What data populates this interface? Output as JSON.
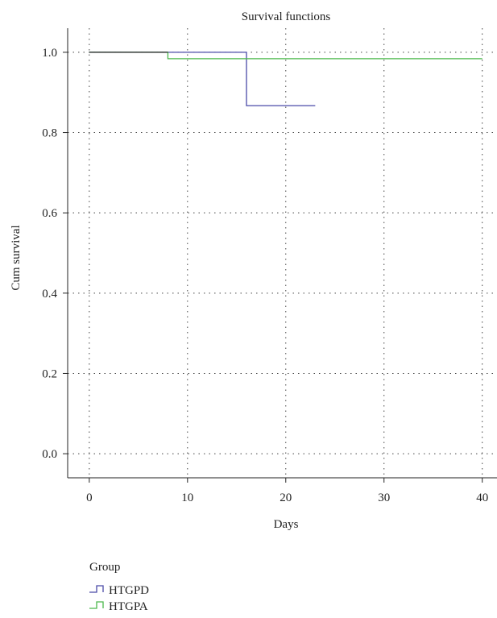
{
  "chart_data": {
    "type": "line",
    "step": true,
    "title": "Survival functions",
    "xlabel": "Days",
    "ylabel": "Cum survival",
    "xlim": [
      -2.2,
      41.5
    ],
    "ylim": [
      -0.06,
      1.06
    ],
    "x_ticks": [
      0,
      10,
      20,
      30,
      40
    ],
    "x_tick_labels": [
      "0",
      "10",
      "20",
      "30",
      "40"
    ],
    "y_ticks": [
      0.0,
      0.2,
      0.4,
      0.6,
      0.8,
      1.0
    ],
    "y_tick_labels": [
      "0.0",
      "0.2",
      "0.4",
      "0.6",
      "0.8",
      "1.0"
    ],
    "grid": "dotted",
    "legend_title": "Group",
    "legend_position": "bottom-left",
    "series": [
      {
        "name": "HTGPD",
        "color": "#4a4aa8",
        "x": [
          0,
          16,
          16,
          23
        ],
        "y": [
          1.0,
          1.0,
          0.867,
          0.867
        ]
      },
      {
        "name": "HTGPA",
        "color": "#4cb84c",
        "x": [
          0,
          8,
          8,
          40
        ],
        "y": [
          1.0,
          1.0,
          0.984,
          0.984
        ]
      }
    ],
    "overlap_color": "#222222"
  }
}
